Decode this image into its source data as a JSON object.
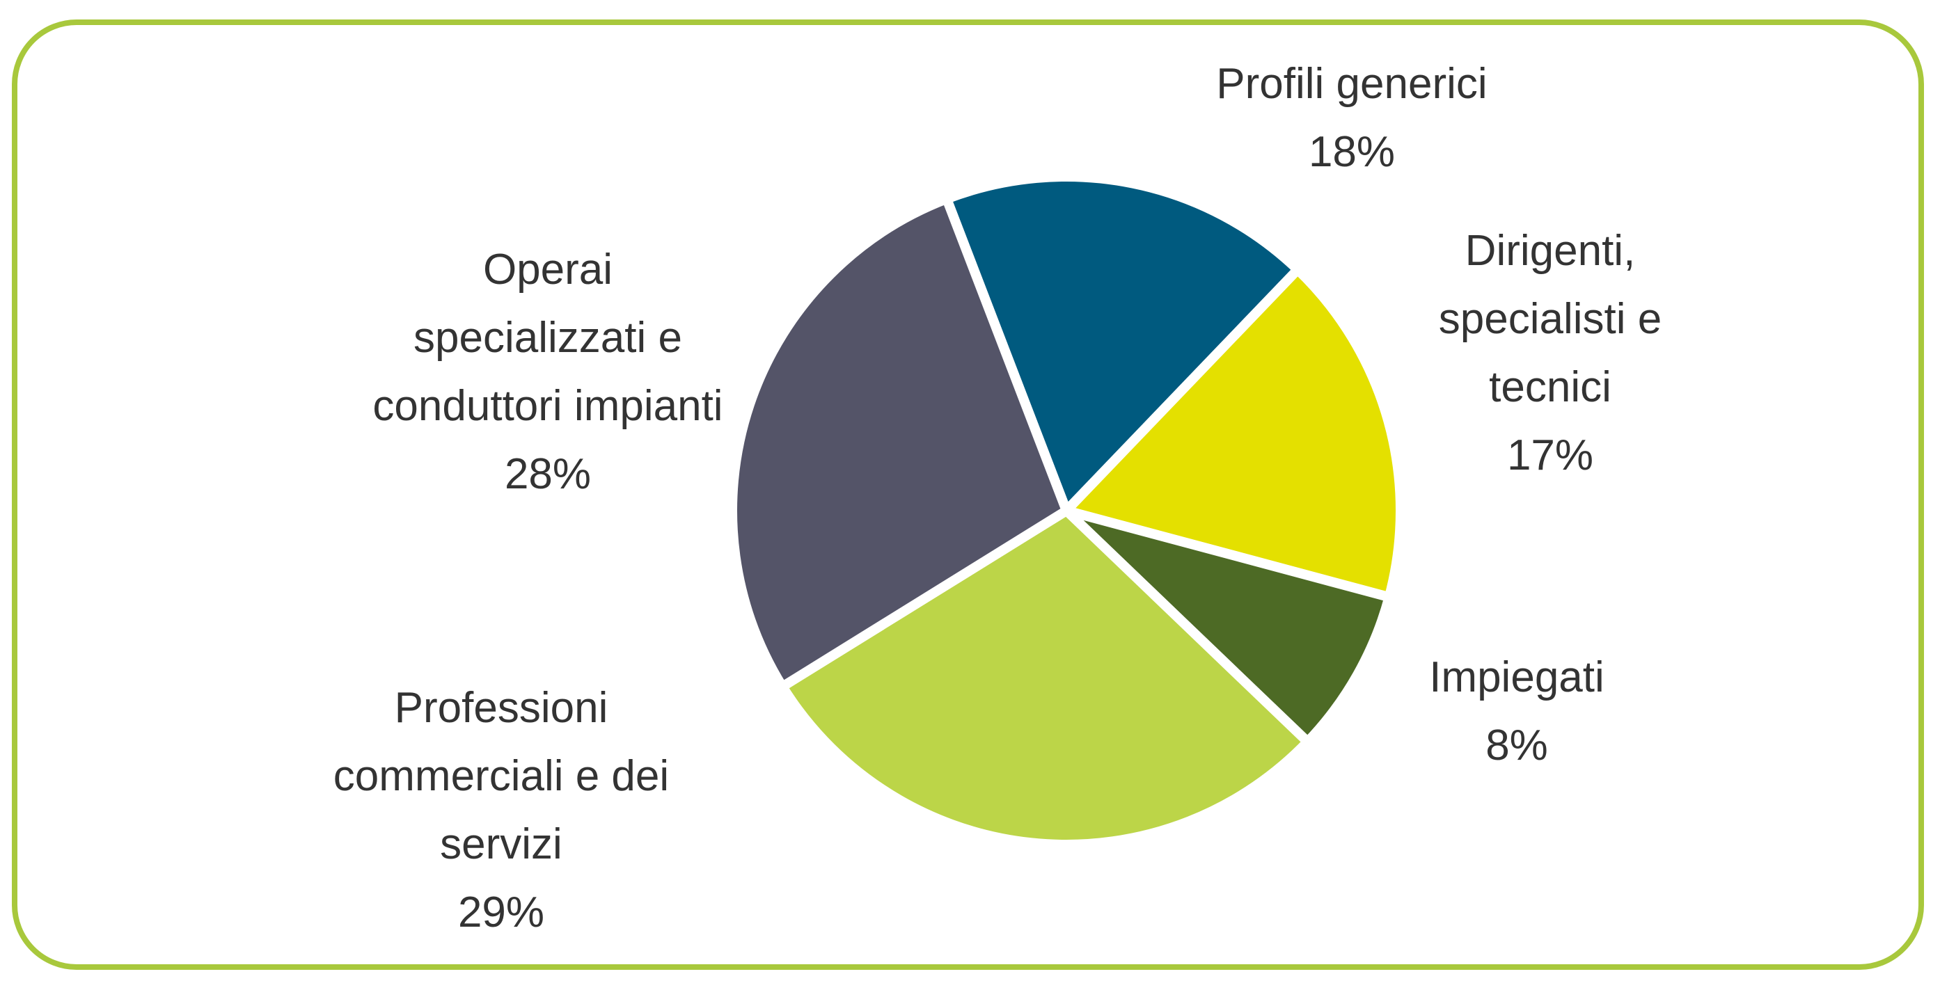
{
  "chart_data": {
    "type": "pie",
    "categories": [
      "Profili generici",
      "Dirigenti, specialisti e tecnici",
      "Impiegati",
      "Professioni commerciali e dei servizi",
      "Operai specializzati e conduttori impianti"
    ],
    "values": [
      18,
      17,
      8,
      29,
      28
    ],
    "value_labels": [
      "18%",
      "17%",
      "8%",
      "29%",
      "28%"
    ],
    "colors": [
      "#005a7f",
      "#e4e000",
      "#4d6a25",
      "#bcd548",
      "#545468"
    ]
  }
}
